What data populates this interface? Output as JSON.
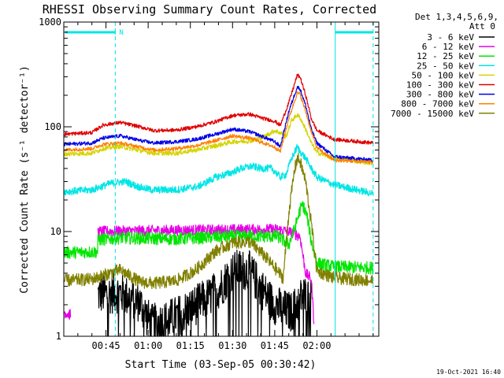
{
  "chart_data": {
    "type": "line",
    "title": "RHESSI Observing Summary Count Rates, Corrected",
    "xlabel": "Start Time (03-Sep-05 00:30:42)",
    "ylabel": "Corrected Count Rate (s⁻¹ detector⁻¹)",
    "footer": "19-Oct-2021 16:40",
    "legend_header": [
      "Det 1,3,4,5,6,9,",
      "Att 0"
    ],
    "legend_position": "right",
    "yscale": "log",
    "xlim_min": [
      0,
      112
    ],
    "ylim": [
      1,
      1000
    ],
    "x_ticks": [
      {
        "min": 15,
        "label": "00:45"
      },
      {
        "min": 30,
        "label": "01:00"
      },
      {
        "min": 45,
        "label": "01:15"
      },
      {
        "min": 60,
        "label": "01:30"
      },
      {
        "min": 75,
        "label": "01:45"
      },
      {
        "min": 90,
        "label": "02:00"
      }
    ],
    "y_ticks": [
      {
        "value": 1,
        "label": "1"
      },
      {
        "value": 10,
        "label": "10"
      },
      {
        "value": 100,
        "label": "100"
      },
      {
        "value": 1000,
        "label": "1000"
      }
    ],
    "spacecraft_bars": {
      "color": "#00e5e5",
      "night_label": "N",
      "segments": [
        [
          0.5,
          18.3
        ],
        [
          96.5,
          110
        ]
      ],
      "tick_min": 18.3,
      "dashed_lines_min": [
        18.3,
        110
      ],
      "solid_lines_min": [
        96.5
      ]
    },
    "series": [
      {
        "name": "3 - 6 keV",
        "color": "#000000",
        "x": [
          0,
          1,
          2,
          3,
          4,
          5,
          6,
          7,
          8,
          9,
          10,
          11,
          12,
          13,
          14,
          15,
          16,
          17,
          18,
          19,
          20,
          21,
          22,
          23,
          24,
          25,
          26,
          27,
          28,
          29,
          30,
          31,
          32,
          33,
          34,
          35,
          36,
          37,
          38,
          39,
          40,
          41,
          42,
          43,
          44,
          45,
          46,
          47,
          48,
          49,
          50,
          51,
          52,
          53,
          54,
          55,
          56,
          57,
          58,
          59,
          60,
          61,
          62,
          63,
          64,
          65,
          66,
          67,
          68,
          69,
          70,
          71,
          72,
          73,
          74,
          75,
          76,
          77,
          78,
          79,
          80,
          81,
          82,
          83,
          84,
          85,
          86,
          87,
          88,
          89,
          90,
          91,
          92,
          93,
          94,
          95,
          96,
          97,
          98,
          99,
          100,
          101,
          102,
          103,
          104,
          105,
          106,
          107,
          108,
          109,
          110,
          111,
          112
        ],
        "y": [
          null,
          null,
          null,
          null,
          null,
          null,
          null,
          null,
          null,
          null,
          null,
          null,
          null,
          null,
          null,
          null,
          null,
          null,
          null,
          null,
          null,
          null,
          null,
          null,
          null,
          null,
          null,
          null,
          null,
          null,
          null,
          null,
          null,
          null,
          null,
          null,
          null,
          null,
          null,
          null,
          null,
          null,
          null,
          null,
          null,
          null,
          null,
          null,
          null,
          null,
          null,
          null,
          null,
          null,
          null,
          null,
          null,
          null,
          null,
          null,
          null,
          null,
          null,
          null,
          null,
          null,
          null,
          null,
          null,
          null,
          null,
          null,
          null,
          null,
          null,
          null,
          null,
          null,
          null,
          null,
          null,
          null,
          null,
          null,
          null,
          null,
          null,
          null,
          null,
          null,
          null,
          null,
          null,
          null,
          null,
          null,
          null,
          null,
          null,
          null,
          null,
          null,
          null,
          null,
          null,
          null,
          null,
          null,
          null,
          null,
          null,
          null,
          null
        ]
      },
      {
        "name": "6 - 12 keV",
        "color": "#e600e6",
        "x": [],
        "y": []
      },
      {
        "name": "12 - 25 keV",
        "color": "#00e600",
        "x": [],
        "y": []
      },
      {
        "name": "25 - 50 keV",
        "color": "#00e5e5",
        "x": [],
        "y": []
      },
      {
        "name": "50 - 100 keV",
        "color": "#d4d400",
        "x": [],
        "y": []
      },
      {
        "name": "100 - 300 keV",
        "color": "#e00000",
        "x": [],
        "y": []
      },
      {
        "name": "300 - 800 keV",
        "color": "#0000e6",
        "x": [],
        "y": []
      },
      {
        "name": "800 - 7000 keV",
        "color": "#ff8000",
        "x": [],
        "y": []
      },
      {
        "name": "7000 - 15000 keV",
        "color": "#808000",
        "x": [],
        "y": []
      }
    ],
    "series_profiles": [
      {
        "name": "3 - 6 keV",
        "points": [
          [
            12,
            null
          ],
          [
            12.1,
            2.5
          ],
          [
            20,
            2.6
          ],
          [
            27,
            2.1
          ],
          [
            31,
            1.3
          ],
          [
            36,
            1.4
          ],
          [
            41,
            1.6
          ],
          [
            47,
            2.0
          ],
          [
            52,
            2.4
          ],
          [
            56,
            3.0
          ],
          [
            59,
            3.9
          ],
          [
            62,
            4.4
          ],
          [
            66,
            4.2
          ],
          [
            69,
            3.2
          ],
          [
            74,
            2.1
          ],
          [
            78,
            1.8
          ],
          [
            81,
            1.7
          ],
          [
            85,
            2.5
          ],
          [
            88,
            2.2
          ],
          [
            89,
            null
          ]
        ],
        "noise": 0.45,
        "gap_low": 1.0
      },
      {
        "name": "6 - 12 keV",
        "points": [
          [
            0,
            1.7
          ],
          [
            2.5,
            1.6
          ],
          [
            3.5,
            null
          ],
          [
            12,
            null
          ],
          [
            12.1,
            10.0
          ],
          [
            30,
            10.2
          ],
          [
            60,
            10.4
          ],
          [
            76,
            10.5
          ],
          [
            80,
            10.0
          ],
          [
            84,
            9.0
          ],
          [
            86,
            4.0
          ],
          [
            88,
            3.5
          ],
          [
            89,
            1.3
          ],
          [
            90,
            null
          ]
        ],
        "noise": 0.12
      },
      {
        "name": "12 - 25 keV",
        "points": [
          [
            0,
            6.3
          ],
          [
            12,
            6.4
          ],
          [
            12.1,
            8.3
          ],
          [
            20,
            8.7
          ],
          [
            40,
            8.5
          ],
          [
            60,
            9.0
          ],
          [
            76,
            9.0
          ],
          [
            80,
            7.5
          ],
          [
            82,
            10.5
          ],
          [
            84,
            16.0
          ],
          [
            85,
            18.0
          ],
          [
            86.5,
            14.0
          ],
          [
            88,
            8.0
          ],
          [
            90,
            5.0
          ],
          [
            96,
            4.6
          ],
          [
            110,
            4.5
          ]
        ],
        "noise": 0.14
      },
      {
        "name": "25 - 50 keV",
        "points": [
          [
            0,
            24
          ],
          [
            10,
            25
          ],
          [
            17,
            29
          ],
          [
            22,
            30
          ],
          [
            26,
            27
          ],
          [
            31,
            25
          ],
          [
            40,
            25
          ],
          [
            48,
            27
          ],
          [
            54,
            33
          ],
          [
            59,
            36
          ],
          [
            63,
            40
          ],
          [
            67,
            42
          ],
          [
            70,
            40
          ],
          [
            74,
            40
          ],
          [
            77,
            33
          ],
          [
            79,
            35
          ],
          [
            81,
            50
          ],
          [
            83,
            64
          ],
          [
            84,
            58
          ],
          [
            86,
            50
          ],
          [
            88,
            40
          ],
          [
            90,
            33
          ],
          [
            96,
            28
          ],
          [
            110,
            23
          ]
        ],
        "noise": 0.08
      },
      {
        "name": "50 - 100 keV",
        "points": [
          [
            0,
            55
          ],
          [
            10,
            56
          ],
          [
            14,
            62
          ],
          [
            20,
            65
          ],
          [
            26,
            60
          ],
          [
            32,
            56
          ],
          [
            40,
            56
          ],
          [
            47,
            60
          ],
          [
            54,
            66
          ],
          [
            60,
            72
          ],
          [
            66,
            73
          ],
          [
            71,
            80
          ],
          [
            75,
            92
          ],
          [
            78,
            85
          ],
          [
            79,
            80
          ],
          [
            81,
            115
          ],
          [
            83,
            130
          ],
          [
            84,
            122
          ],
          [
            86,
            95
          ],
          [
            88,
            70
          ],
          [
            90,
            57
          ],
          [
            96,
            50
          ],
          [
            110,
            45
          ]
        ],
        "noise": 0.05
      },
      {
        "name": "100 - 300 keV",
        "points": [
          [
            0,
            85
          ],
          [
            10,
            88
          ],
          [
            14,
            104
          ],
          [
            20,
            110
          ],
          [
            27,
            100
          ],
          [
            32,
            92
          ],
          [
            40,
            93
          ],
          [
            47,
            100
          ],
          [
            54,
            112
          ],
          [
            60,
            128
          ],
          [
            66,
            132
          ],
          [
            71,
            120
          ],
          [
            75,
            113
          ],
          [
            77,
            103
          ],
          [
            80,
            170
          ],
          [
            83,
            310
          ],
          [
            84,
            300
          ],
          [
            86,
            200
          ],
          [
            88,
            120
          ],
          [
            90,
            92
          ],
          [
            96,
            76
          ],
          [
            110,
            70
          ]
        ],
        "noise": 0.04
      },
      {
        "name": "300 - 800 keV",
        "points": [
          [
            0,
            68
          ],
          [
            10,
            70
          ],
          [
            14,
            78
          ],
          [
            20,
            82
          ],
          [
            27,
            74
          ],
          [
            32,
            70
          ],
          [
            40,
            72
          ],
          [
            47,
            76
          ],
          [
            54,
            85
          ],
          [
            60,
            95
          ],
          [
            66,
            90
          ],
          [
            71,
            80
          ],
          [
            75,
            72
          ],
          [
            77,
            65
          ],
          [
            80,
            140
          ],
          [
            83,
            240
          ],
          [
            84,
            230
          ],
          [
            86,
            160
          ],
          [
            88,
            95
          ],
          [
            90,
            70
          ],
          [
            96,
            52
          ],
          [
            110,
            48
          ]
        ],
        "noise": 0.04
      },
      {
        "name": "800 - 7000 keV",
        "points": [
          [
            0,
            60
          ],
          [
            10,
            62
          ],
          [
            14,
            68
          ],
          [
            20,
            70
          ],
          [
            27,
            64
          ],
          [
            32,
            60
          ],
          [
            40,
            62
          ],
          [
            47,
            66
          ],
          [
            54,
            74
          ],
          [
            60,
            82
          ],
          [
            66,
            78
          ],
          [
            71,
            70
          ],
          [
            75,
            64
          ],
          [
            77,
            58
          ],
          [
            80,
            120
          ],
          [
            83,
            210
          ],
          [
            84,
            205
          ],
          [
            86,
            140
          ],
          [
            88,
            90
          ],
          [
            90,
            63
          ],
          [
            96,
            48
          ],
          [
            110,
            46
          ]
        ],
        "noise": 0.04
      },
      {
        "name": "7000 - 15000 keV",
        "points": [
          [
            0,
            3.4
          ],
          [
            10,
            3.5
          ],
          [
            14,
            3.8
          ],
          [
            20,
            4.3
          ],
          [
            27,
            3.3
          ],
          [
            32,
            3.2
          ],
          [
            40,
            3.4
          ],
          [
            47,
            4.3
          ],
          [
            54,
            6.5
          ],
          [
            60,
            7.8
          ],
          [
            66,
            8.0
          ],
          [
            71,
            6.0
          ],
          [
            75,
            4.5
          ],
          [
            78,
            3.6
          ],
          [
            80,
            15.0
          ],
          [
            82,
            38
          ],
          [
            83,
            50
          ],
          [
            84,
            47
          ],
          [
            86,
            30
          ],
          [
            88,
            12
          ],
          [
            90,
            4.2
          ],
          [
            96,
            3.6
          ],
          [
            110,
            3.4
          ]
        ],
        "noise": 0.14
      }
    ]
  }
}
